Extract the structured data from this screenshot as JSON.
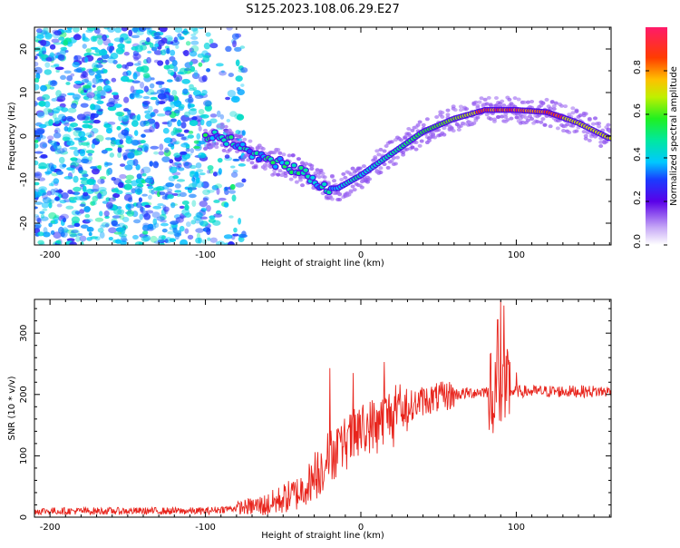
{
  "title": "S125.2023.108.06.29.E27",
  "chart_data": [
    {
      "type": "heatmap",
      "xlabel": "Height of straight line (km)",
      "ylabel": "Frequency (Hz)",
      "xlim": [
        -210,
        161
      ],
      "ylim": [
        -25,
        25
      ],
      "xticks": [
        -200,
        -100,
        0,
        100
      ],
      "yticks": [
        -20,
        -10,
        0,
        10,
        20
      ],
      "colorbar": {
        "label": "Normalized spectral amplitude",
        "ticks": [
          "0.0",
          "0.2",
          "0.4",
          "0.6",
          "0.8"
        ],
        "range": [
          0,
          1
        ]
      },
      "ridge": {
        "x": [
          -100,
          -90,
          -80,
          -70,
          -60,
          -50,
          -40,
          -30,
          -20,
          -15,
          -10,
          0,
          20,
          40,
          60,
          80,
          100,
          120,
          140,
          160
        ],
        "freq": [
          0,
          0,
          -2,
          -4,
          -6,
          -6,
          -8,
          -10,
          -12,
          -12,
          -11,
          -9,
          -4,
          1,
          4,
          6,
          6,
          5.5,
          3,
          -0.5
        ]
      }
    },
    {
      "type": "line",
      "xlabel": "Height of straight line (km)",
      "ylabel": "SNR (10 * v/v)",
      "xlim": [
        -210,
        161
      ],
      "ylim": [
        0,
        355
      ],
      "xticks": [
        -200,
        -100,
        0,
        100
      ],
      "yticks": [
        0,
        100,
        200,
        300
      ],
      "color": "#e8241c",
      "envelope": {
        "x": [
          -210,
          -100,
          -80,
          -60,
          -40,
          -30,
          -20,
          -10,
          0,
          20,
          40,
          60,
          80,
          100,
          120,
          161
        ],
        "y": [
          10,
          10,
          15,
          20,
          40,
          65,
          100,
          120,
          140,
          170,
          190,
          200,
          205,
          205,
          205,
          205
        ]
      },
      "spikes": [
        {
          "x": -20,
          "y": 243
        },
        {
          "x": -5,
          "y": 235
        },
        {
          "x": 15,
          "y": 253
        },
        {
          "x": 88,
          "y": 322
        },
        {
          "x": 90,
          "y": 353
        },
        {
          "x": 92,
          "y": 345
        },
        {
          "x": 100,
          "y": 236
        }
      ]
    }
  ]
}
